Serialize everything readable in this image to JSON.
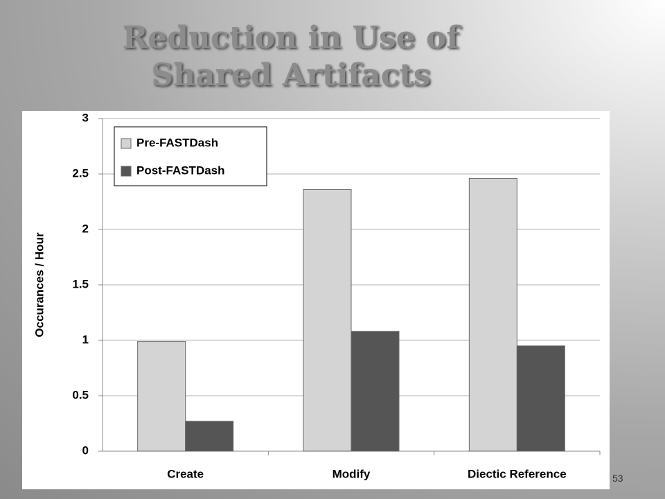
{
  "page_number": "53",
  "chart_data": {
    "type": "bar",
    "title": "Reduction in Use of Shared Artifacts",
    "ylabel": "Occurances / Hour",
    "categories": [
      "Create",
      "Modify",
      "Diectic Reference"
    ],
    "series": [
      {
        "name": "Pre-FASTDash",
        "color": "#d4d4d4",
        "values": [
          0.99,
          2.36,
          2.46
        ]
      },
      {
        "name": "Post-FASTDash",
        "color": "#555555",
        "values": [
          0.27,
          1.08,
          0.95
        ]
      }
    ],
    "ylim": [
      0,
      3
    ],
    "yticks": [
      0,
      0.5,
      1,
      1.5,
      2,
      2.5,
      3
    ],
    "grid": true,
    "legend": "upper left"
  }
}
